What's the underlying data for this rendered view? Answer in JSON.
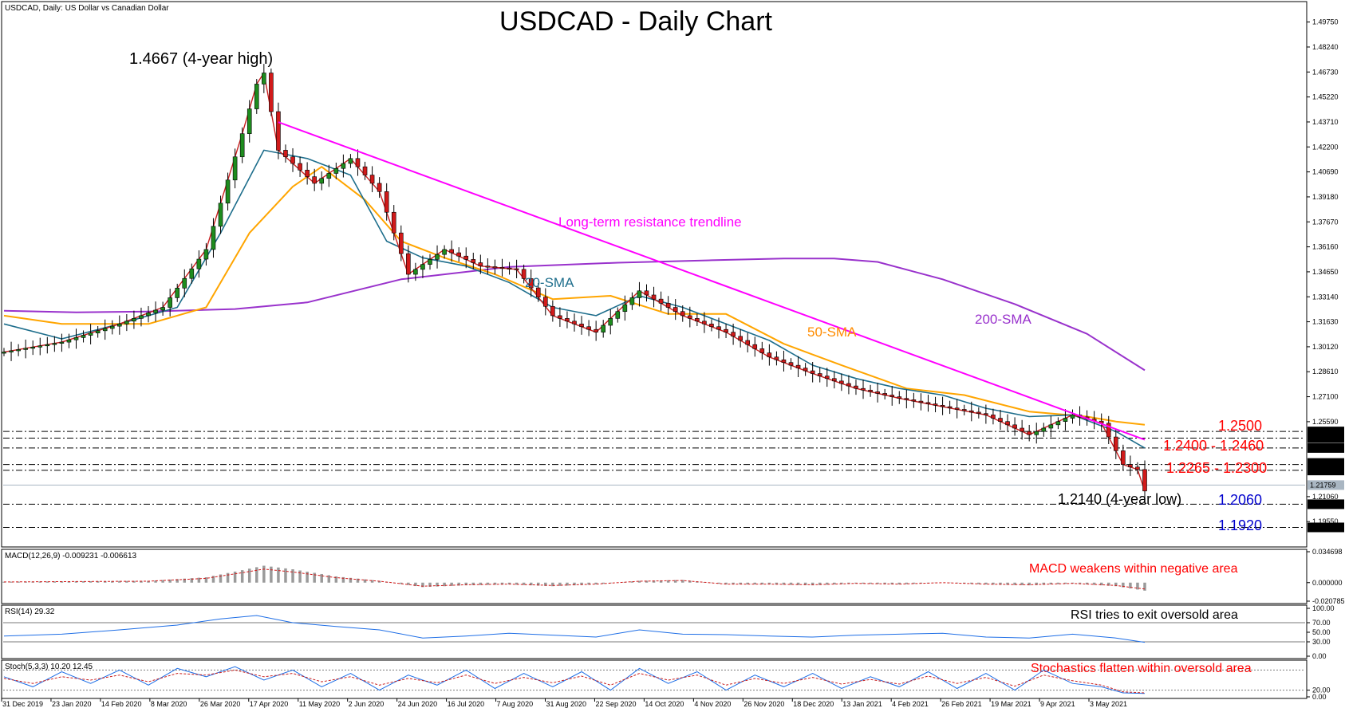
{
  "chart_data": [
    {
      "type": "line",
      "instrument_label": "USDCAD, Daily:  US Dollar vs Canadian Dollar",
      "title": "USDCAD - Daily Chart",
      "price_axis_ticks": [
        "1.49750",
        "1.48240",
        "1.46730",
        "1.45220",
        "1.43710",
        "1.42200",
        "1.40690",
        "1.39180",
        "1.37670",
        "1.36160",
        "1.34650",
        "1.33140",
        "1.31630",
        "1.30120",
        "1.28610",
        "1.27100",
        "1.25590",
        "1.21060",
        "1.19550"
      ],
      "ylim": [
        1.185,
        1.506
      ],
      "level_tags": [
        "1.25000",
        "1.24600",
        "1.24000",
        "1.23096",
        "1.22640",
        "1.21759",
        "1.20600",
        "1.19200"
      ],
      "x_ticks": [
        "31 Dec 2019",
        "23 Jan 2020",
        "14 Feb 2020",
        "8 Mar 2020",
        "26 Mar 2020",
        "17 Apr 2020",
        "11 May 2020",
        "2 Jun 2020",
        "24 Jun 2020",
        "16 Jul 2020",
        "7 Aug 2020",
        "31 Aug 2020",
        "22 Sep 2020",
        "14 Oct 2020",
        "4 Nov 2020",
        "26 Nov 2020",
        "18 Dec 2020",
        "13 Jan 2021",
        "4 Feb 2021",
        "26 Feb 2021",
        "19 Mar 2021",
        "9 Apr 2021",
        "3 May 2021"
      ],
      "series": [
        {
          "name": "200-SMA",
          "color": "#9932cc",
          "values": [
            [
              0,
              1.323
            ],
            [
              10,
              1.322
            ],
            [
              20,
              1.3225
            ],
            [
              32,
              1.324
            ],
            [
              42,
              1.328
            ],
            [
              55,
              1.342
            ],
            [
              70,
              1.3495
            ],
            [
              85,
              1.352
            ],
            [
              98,
              1.3535
            ],
            [
              108,
              1.3545
            ],
            [
              115,
              1.3545
            ],
            [
              121,
              1.3525
            ],
            [
              130,
              1.342
            ],
            [
              140,
              1.327
            ],
            [
              150,
              1.309
            ],
            [
              158,
              1.287
            ]
          ]
        },
        {
          "name": "50-SMA",
          "color": "#ffa500",
          "values": [
            [
              0,
              1.32
            ],
            [
              8,
              1.315
            ],
            [
              20,
              1.315
            ],
            [
              28,
              1.325
            ],
            [
              34,
              1.37
            ],
            [
              40,
              1.398
            ],
            [
              44,
              1.41
            ],
            [
              50,
              1.39
            ],
            [
              55,
              1.365
            ],
            [
              61,
              1.355
            ],
            [
              68,
              1.345
            ],
            [
              76,
              1.33
            ],
            [
              84,
              1.332
            ],
            [
              92,
              1.321
            ],
            [
              100,
              1.321
            ],
            [
              108,
              1.303
            ],
            [
              116,
              1.29
            ],
            [
              125,
              1.276
            ],
            [
              133,
              1.272
            ],
            [
              142,
              1.262
            ],
            [
              150,
              1.259
            ],
            [
              154,
              1.256
            ],
            [
              158,
              1.254
            ]
          ]
        },
        {
          "name": "20-SMA",
          "color": "#1e6e8c",
          "values": [
            [
              0,
              1.315
            ],
            [
              8,
              1.306
            ],
            [
              16,
              1.315
            ],
            [
              24,
              1.325
            ],
            [
              30,
              1.37
            ],
            [
              36,
              1.42
            ],
            [
              42,
              1.415
            ],
            [
              48,
              1.405
            ],
            [
              53,
              1.365
            ],
            [
              58,
              1.355
            ],
            [
              64,
              1.35
            ],
            [
              70,
              1.34
            ],
            [
              76,
              1.325
            ],
            [
              82,
              1.32
            ],
            [
              88,
              1.332
            ],
            [
              94,
              1.325
            ],
            [
              100,
              1.315
            ],
            [
              106,
              1.305
            ],
            [
              112,
              1.29
            ],
            [
              118,
              1.282
            ],
            [
              124,
              1.276
            ],
            [
              130,
              1.272
            ],
            [
              136,
              1.264
            ],
            [
              142,
              1.259
            ],
            [
              148,
              1.26
            ],
            [
              154,
              1.25
            ],
            [
              158,
              1.24
            ]
          ]
        },
        {
          "name": "Price",
          "color": "#c81e1e",
          "values": [
            [
              0,
              1.298
            ],
            [
              8,
              1.304
            ],
            [
              16,
              1.315
            ],
            [
              22,
              1.325
            ],
            [
              28,
              1.36
            ],
            [
              33,
              1.43
            ],
            [
              35,
              1.46
            ],
            [
              36,
              1.4667
            ],
            [
              38,
              1.42
            ],
            [
              43,
              1.4
            ],
            [
              48,
              1.415
            ],
            [
              52,
              1.395
            ],
            [
              56,
              1.345
            ],
            [
              61,
              1.36
            ],
            [
              66,
              1.35
            ],
            [
              71,
              1.348
            ],
            [
              76,
              1.32
            ],
            [
              82,
              1.31
            ],
            [
              88,
              1.335
            ],
            [
              94,
              1.32
            ],
            [
              100,
              1.31
            ],
            [
              106,
              1.295
            ],
            [
              112,
              1.285
            ],
            [
              118,
              1.276
            ],
            [
              124,
              1.27
            ],
            [
              130,
              1.265
            ],
            [
              136,
              1.26
            ],
            [
              142,
              1.248
            ],
            [
              148,
              1.26
            ],
            [
              152,
              1.255
            ],
            [
              155,
              1.23
            ],
            [
              157,
              1.227
            ],
            [
              158,
              1.214
            ]
          ]
        }
      ],
      "trendline": {
        "name": "Long-term resistance trendline",
        "color": "#ff00ff",
        "start": [
          38,
          1.437
        ],
        "end": [
          158,
          1.245
        ]
      },
      "horizontal_levels": [
        1.25,
        1.246,
        1.24,
        1.23,
        1.2265,
        1.206,
        1.192
      ],
      "current_price_line": 1.21759,
      "annotations": {
        "high": "1.4667 (4-year high)",
        "low": "1.2140 (4-year low)",
        "trendline": "Long-term resistance trendline",
        "sma20": "20-SMA",
        "sma50": "50-SMA",
        "sma200": "200-SMA",
        "lvl_1250": "1.2500",
        "lvl_1240": "1.2400 - 1.2460",
        "lvl_1226": "1.2265 - 1.2300",
        "lvl_1206": "1.2060",
        "lvl_1192": "1.1920"
      }
    },
    {
      "type": "bar",
      "indicator_label": "MACD(12,26,9) -0.009231 -0.006613",
      "annotation": "MACD weakens within negative area",
      "axis_ticks": [
        "0.034698",
        "0.000000",
        "-0.020785"
      ],
      "ylim": [
        -0.0208,
        0.0347
      ],
      "values": [
        [
          0,
          0.001
        ],
        [
          10,
          0.0015
        ],
        [
          20,
          0.002
        ],
        [
          28,
          0.006
        ],
        [
          33,
          0.014
        ],
        [
          36,
          0.019
        ],
        [
          40,
          0.015
        ],
        [
          46,
          0.007
        ],
        [
          52,
          0.002
        ],
        [
          58,
          -0.005
        ],
        [
          64,
          -0.003
        ],
        [
          70,
          -0.002
        ],
        [
          76,
          -0.004
        ],
        [
          82,
          -0.002
        ],
        [
          88,
          0.002
        ],
        [
          94,
          0.003
        ],
        [
          100,
          -0.002
        ],
        [
          106,
          -0.002
        ],
        [
          112,
          -0.003
        ],
        [
          118,
          -0.001
        ],
        [
          124,
          -0.002
        ],
        [
          130,
          0.0
        ],
        [
          136,
          -0.002
        ],
        [
          142,
          -0.003
        ],
        [
          148,
          -0.001
        ],
        [
          154,
          -0.004
        ],
        [
          158,
          -0.009
        ]
      ]
    },
    {
      "type": "line",
      "indicator_label": "RSI(14) 29.32",
      "annotation": "RSI tries to exit oversold area",
      "axis_ticks": [
        "100.00",
        "70.00",
        "50.00",
        "30.00",
        "0.00"
      ],
      "ylim": [
        0,
        100
      ],
      "values": [
        [
          0,
          42
        ],
        [
          8,
          46
        ],
        [
          16,
          55
        ],
        [
          24,
          65
        ],
        [
          30,
          78
        ],
        [
          35,
          85
        ],
        [
          40,
          70
        ],
        [
          46,
          62
        ],
        [
          52,
          55
        ],
        [
          58,
          38
        ],
        [
          64,
          42
        ],
        [
          70,
          48
        ],
        [
          76,
          44
        ],
        [
          82,
          40
        ],
        [
          88,
          55
        ],
        [
          94,
          46
        ],
        [
          100,
          45
        ],
        [
          106,
          42
        ],
        [
          112,
          40
        ],
        [
          118,
          44
        ],
        [
          124,
          46
        ],
        [
          130,
          48
        ],
        [
          136,
          40
        ],
        [
          142,
          38
        ],
        [
          148,
          46
        ],
        [
          154,
          38
        ],
        [
          158,
          29
        ]
      ]
    },
    {
      "type": "line",
      "indicator_label": "Stoch(5,3,3) 10.20 12.45",
      "annotation": "Stochastics flatten within oversold area",
      "axis_ticks": [
        "20.00",
        "0.00"
      ],
      "ylim": [
        0,
        100
      ],
      "series": [
        {
          "name": "%K",
          "color": "#1e6ee6",
          "values": [
            [
              0,
              60
            ],
            [
              4,
              30
            ],
            [
              8,
              75
            ],
            [
              12,
              40
            ],
            [
              16,
              80
            ],
            [
              20,
              35
            ],
            [
              24,
              85
            ],
            [
              28,
              60
            ],
            [
              32,
              90
            ],
            [
              36,
              50
            ],
            [
              40,
              80
            ],
            [
              44,
              30
            ],
            [
              48,
              70
            ],
            [
              52,
              20
            ],
            [
              56,
              65
            ],
            [
              60,
              35
            ],
            [
              64,
              80
            ],
            [
              68,
              25
            ],
            [
              72,
              70
            ],
            [
              76,
              30
            ],
            [
              80,
              75
            ],
            [
              84,
              20
            ],
            [
              88,
              85
            ],
            [
              92,
              40
            ],
            [
              96,
              75
            ],
            [
              100,
              20
            ],
            [
              104,
              65
            ],
            [
              108,
              30
            ],
            [
              112,
              70
            ],
            [
              116,
              25
            ],
            [
              120,
              60
            ],
            [
              124,
              30
            ],
            [
              128,
              75
            ],
            [
              132,
              25
            ],
            [
              136,
              70
            ],
            [
              140,
              20
            ],
            [
              144,
              80
            ],
            [
              148,
              40
            ],
            [
              152,
              30
            ],
            [
              155,
              12
            ],
            [
              158,
              10
            ]
          ]
        },
        {
          "name": "%D",
          "color": "#c81e1e",
          "values": [
            [
              0,
              55
            ],
            [
              4,
              40
            ],
            [
              8,
              60
            ],
            [
              12,
              50
            ],
            [
              16,
              65
            ],
            [
              20,
              45
            ],
            [
              24,
              70
            ],
            [
              28,
              65
            ],
            [
              32,
              80
            ],
            [
              36,
              60
            ],
            [
              40,
              70
            ],
            [
              44,
              45
            ],
            [
              48,
              60
            ],
            [
              52,
              35
            ],
            [
              56,
              55
            ],
            [
              60,
              42
            ],
            [
              64,
              65
            ],
            [
              68,
              40
            ],
            [
              72,
              58
            ],
            [
              76,
              42
            ],
            [
              80,
              62
            ],
            [
              84,
              35
            ],
            [
              88,
              70
            ],
            [
              92,
              50
            ],
            [
              96,
              65
            ],
            [
              100,
              35
            ],
            [
              104,
              55
            ],
            [
              108,
              40
            ],
            [
              112,
              58
            ],
            [
              116,
              38
            ],
            [
              120,
              52
            ],
            [
              124,
              38
            ],
            [
              128,
              62
            ],
            [
              132,
              40
            ],
            [
              136,
              58
            ],
            [
              140,
              32
            ],
            [
              144,
              65
            ],
            [
              148,
              48
            ],
            [
              152,
              35
            ],
            [
              155,
              15
            ],
            [
              158,
              12
            ]
          ]
        }
      ]
    }
  ]
}
